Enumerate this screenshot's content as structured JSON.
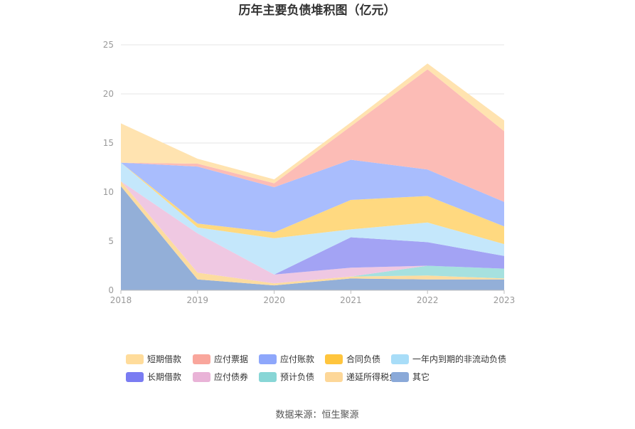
{
  "chart_data": {
    "type": "area",
    "stacked": true,
    "title": "历年主要负债堆积图（亿元）",
    "source": "数据来源：恒生聚源",
    "x": [
      "2018",
      "2019",
      "2020",
      "2021",
      "2022",
      "2023"
    ],
    "ylim": [
      0,
      25
    ],
    "yticks": [
      "0",
      "5",
      "10",
      "15",
      "20",
      "25"
    ],
    "grid": true,
    "legend_position": "bottom",
    "series": [
      {
        "name": "其它",
        "color": "#93afd8",
        "values": [
          10.6,
          1.1,
          0.5,
          1.2,
          1.1,
          1.1
        ]
      },
      {
        "name": "递延所得税负债",
        "color": "#fcdca0",
        "values": [
          0.5,
          0.7,
          0.2,
          0.2,
          0.4,
          0.1
        ]
      },
      {
        "name": "预计负债",
        "color": "#a6e1df",
        "values": [
          0,
          0,
          0,
          0,
          1.0,
          1.0
        ]
      },
      {
        "name": "应付债券",
        "color": "#efc8e2",
        "values": [
          0,
          4.0,
          0.9,
          0.9,
          0,
          0
        ]
      },
      {
        "name": "长期借款",
        "color": "#a3a3f4",
        "values": [
          0,
          0,
          0,
          3.1,
          2.4,
          1.3
        ]
      },
      {
        "name": "一年内到期的非流动负债",
        "color": "#c4e7fb",
        "values": [
          1.9,
          0.6,
          3.7,
          0.8,
          2.0,
          1.2
        ]
      },
      {
        "name": "合同负债",
        "color": "#ffd980",
        "values": [
          0,
          0.4,
          0.6,
          3.0,
          2.7,
          1.8
        ]
      },
      {
        "name": "应付账款",
        "color": "#a9bdfd",
        "values": [
          0,
          5.8,
          4.6,
          4.1,
          2.7,
          2.5
        ]
      },
      {
        "name": "应付票据",
        "color": "#fcbcb6",
        "values": [
          0,
          0.3,
          0.4,
          3.4,
          10.2,
          7.2
        ]
      },
      {
        "name": "短期借款",
        "color": "#ffe3b0",
        "values": [
          4.0,
          0.5,
          0.4,
          0.4,
          0.6,
          1.1
        ]
      }
    ],
    "legend": [
      {
        "name": "短期借款",
        "color": "#ffdc9b"
      },
      {
        "name": "应付票据",
        "color": "#f9a69c"
      },
      {
        "name": "应付账款",
        "color": "#8ea7fb"
      },
      {
        "name": "合同负债",
        "color": "#ffc53d"
      },
      {
        "name": "一年内到期的非流动负债",
        "color": "#a8ddf8"
      },
      {
        "name": "长期借款",
        "color": "#7a7cf2"
      },
      {
        "name": "应付债券",
        "color": "#e9b3d7"
      },
      {
        "name": "预计负债",
        "color": "#88d6d6"
      },
      {
        "name": "递延所得税负债",
        "color": "#fdd798"
      },
      {
        "name": "其它",
        "color": "#8aa9d8"
      }
    ]
  }
}
